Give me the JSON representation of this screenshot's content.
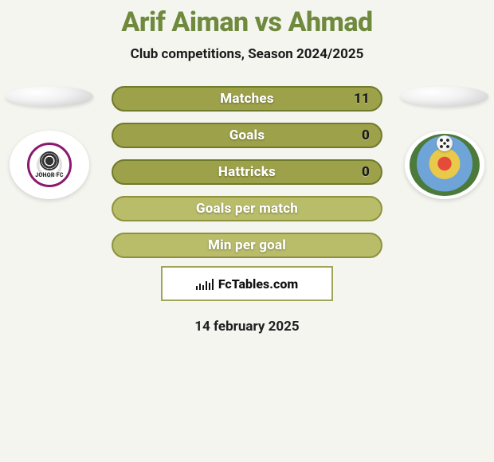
{
  "header": {
    "title": "Arif Aiman vs Ahmad",
    "subtitle": "Club competitions, Season 2024/2025",
    "title_color": "#6f8a3d"
  },
  "left_club": {
    "short_label": "JOHOR FC",
    "ring_color": "#8a1a6f"
  },
  "right_club": {
    "outer_color": "#4b7a3a",
    "sky_color": "#6ea4d8",
    "gold_color": "#e8c94a",
    "center_color": "#e54b3a"
  },
  "stats": [
    {
      "label": "Matches",
      "value": "11",
      "bg": "#9ca14a",
      "border": "#6f7a2c"
    },
    {
      "label": "Goals",
      "value": "0",
      "bg": "#9ca14a",
      "border": "#6f7a2c"
    },
    {
      "label": "Hattricks",
      "value": "0",
      "bg": "#9ca14a",
      "border": "#6f7a2c"
    },
    {
      "label": "Goals per match",
      "value": "",
      "bg": "#b9bd6a",
      "border": "#8e923d"
    },
    {
      "label": "Min per goal",
      "value": "",
      "bg": "#b9bd6a",
      "border": "#8e923d"
    }
  ],
  "brand": {
    "name": "FcTables.com",
    "border_color": "#a0a658"
  },
  "footer": {
    "date": "14 february 2025"
  },
  "colors": {
    "page_bg": "#f5f5f0"
  }
}
